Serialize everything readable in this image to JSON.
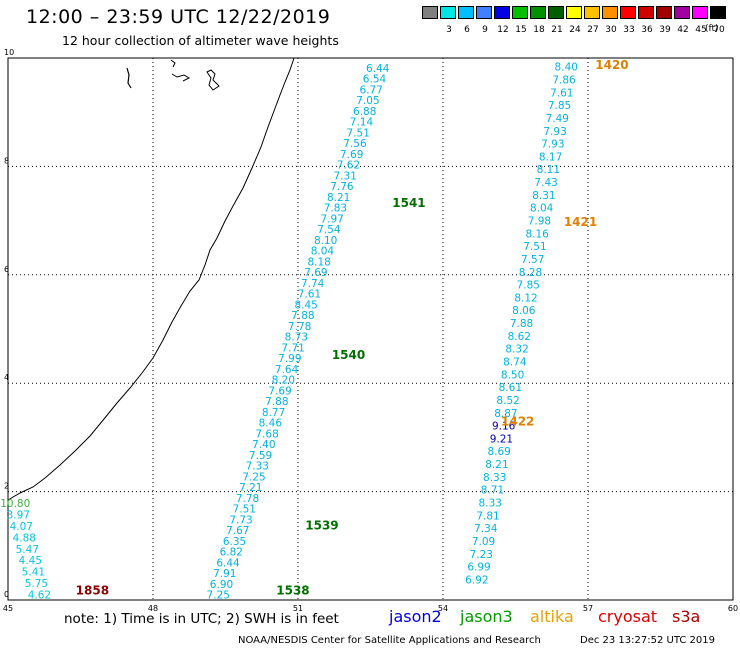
{
  "header": {
    "title": "12:00 – 23:59 UTC 12/22/2019",
    "subtitle": "12 hour collection of altimeter wave heights"
  },
  "color_scale": {
    "bins": [
      {
        "color": "#808080",
        "label": ""
      },
      {
        "color": "#00e5e5",
        "label": "3"
      },
      {
        "color": "#00bfff",
        "label": "6"
      },
      {
        "color": "#4080ff",
        "label": "9"
      },
      {
        "color": "#0000e0",
        "label": "12"
      },
      {
        "color": "#00c000",
        "label": "15"
      },
      {
        "color": "#009000",
        "label": "18"
      },
      {
        "color": "#006000",
        "label": "21"
      },
      {
        "color": "#ffff00",
        "label": "24"
      },
      {
        "color": "#ffc000",
        "label": "27"
      },
      {
        "color": "#ff9000",
        "label": "30"
      },
      {
        "color": "#ff0000",
        "label": "33"
      },
      {
        "color": "#d00000",
        "label": "36"
      },
      {
        "color": "#a00000",
        "label": "39"
      },
      {
        "color": "#a000a0",
        "label": "42"
      },
      {
        "color": "#ff00ff",
        "label": "45"
      },
      {
        "color": "#000000",
        "label": "70"
      }
    ],
    "unit": "(ft)"
  },
  "map": {
    "x_ticks": [
      "45",
      "48",
      "51",
      "54",
      "57",
      "60"
    ],
    "y_ticks": [
      "0",
      "2",
      "4",
      "6",
      "8",
      "10"
    ],
    "passes": [
      {
        "time": "1858",
        "color": "#8b0000",
        "lon": 46.4,
        "lat": 0.1
      },
      {
        "time": "1538",
        "color": "#007000",
        "lon": 50.55,
        "lat": 0.1
      },
      {
        "time": "1539",
        "color": "#007000",
        "lon": 51.15,
        "lat": 1.3
      },
      {
        "time": "1540",
        "color": "#007000",
        "lon": 51.7,
        "lat": 4.45
      },
      {
        "time": "1541",
        "color": "#007000",
        "lon": 52.95,
        "lat": 7.25
      },
      {
        "time": "1422",
        "color": "#e08000",
        "lon": 55.2,
        "lat": 3.22
      },
      {
        "time": "1421",
        "color": "#e08000",
        "lon": 56.5,
        "lat": 6.9
      },
      {
        "time": "1420",
        "color": "#e08000",
        "lon": 57.15,
        "lat": 9.8
      }
    ],
    "tracks": [
      {
        "name": "s3a-west",
        "color": "#00c8dc",
        "start": [
          45.15,
          1.79
        ],
        "end": [
          45.65,
          0.1
        ],
        "values": [
          "10.80",
          "3.97",
          "4.07",
          "4.88",
          "5.47",
          "4.45",
          "5.41",
          "5.75",
          "4.62"
        ],
        "value_colors": {
          "0": "#40b040"
        }
      },
      {
        "name": "jason3",
        "color": "#00b4e0",
        "start": [
          52.65,
          9.82
        ],
        "end": [
          49.35,
          0.1
        ],
        "values": [
          "6.44",
          "6.54",
          "6.77",
          "7.05",
          "6.88",
          "7.14",
          "7.51",
          "7.56",
          "7.69",
          "7.62",
          "7.31",
          "7.76",
          "8.21",
          "7.83",
          "7.97",
          "7.54",
          "8.10",
          "8.04",
          "8.18",
          "7.69",
          "7.74",
          "7.61",
          "8.45",
          "7.88",
          "7.78",
          "8.73",
          "7.71",
          "7.99",
          "7.64",
          "8.20",
          "7.69",
          "7.88",
          "8.77",
          "8.46",
          "7.68",
          "7.40",
          "7.59",
          "7.33",
          "7.25",
          "7.21",
          "7.78",
          "7.51",
          "7.73",
          "7.67",
          "6.35",
          "6.82",
          "6.44",
          "7.91",
          "6.90",
          "7.25"
        ],
        "value_colors": {}
      },
      {
        "name": "altika",
        "color": "#00b4e0",
        "start": [
          56.55,
          9.84
        ],
        "end": [
          54.7,
          0.38
        ],
        "values": [
          "8.40",
          "7.86",
          "7.61",
          "7.85",
          "7.49",
          "7.93",
          "7.93",
          "8.17",
          "8.11",
          "7.43",
          "8.31",
          "8.04",
          "7.98",
          "8.16",
          "7.51",
          "7.57",
          "8.28",
          "7.85",
          "8.12",
          "8.06",
          "7.88",
          "8.62",
          "8.32",
          "8.74",
          "8.50",
          "8.61",
          "8.52",
          "8.87",
          "9.16",
          "9.21",
          "8.69",
          "8.21",
          "8.33",
          "8.71",
          "8.33",
          "7.81",
          "7.34",
          "7.09",
          "7.23",
          "6.99",
          "6.92"
        ],
        "value_colors": {
          "28": "#0000c0",
          "29": "#0000c0"
        }
      }
    ]
  },
  "footer": {
    "note": "note:  1) Time is in UTC;  2) SWH is in feet",
    "legend": [
      {
        "name": "jason2",
        "color": "#0000e0"
      },
      {
        "name": "jason3",
        "color": "#00a000"
      },
      {
        "name": "altika",
        "color": "#f0a000"
      },
      {
        "name": "cryosat",
        "color": "#e00000"
      },
      {
        "name": "s3a",
        "color": "#b00000"
      }
    ],
    "credit": "NOAA/NESDIS Center for Satellite Applications and Research",
    "timestamp": "Dec 23 13:27:52 UTC 2019"
  }
}
